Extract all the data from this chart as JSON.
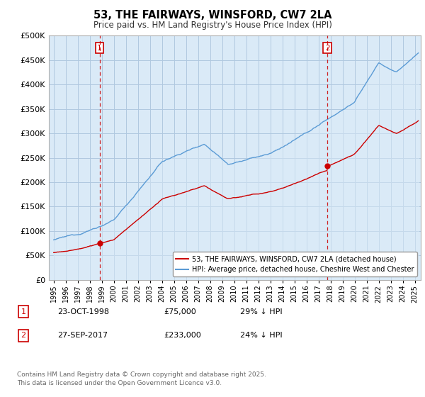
{
  "title": "53, THE FAIRWAYS, WINSFORD, CW7 2LA",
  "subtitle": "Price paid vs. HM Land Registry's House Price Index (HPI)",
  "ytick_values": [
    0,
    50000,
    100000,
    150000,
    200000,
    250000,
    300000,
    350000,
    400000,
    450000,
    500000
  ],
  "ylim": [
    0,
    500000
  ],
  "xlim_start": 1994.6,
  "xlim_end": 2025.5,
  "hpi_color": "#5b9bd5",
  "hpi_fill_color": "#daeaf7",
  "price_color": "#cc0000",
  "dashed_color": "#cc0000",
  "marker1_x": 1998.81,
  "marker1_y": 75000,
  "marker2_x": 2017.74,
  "marker2_y": 233000,
  "legend_property_label": "53, THE FAIRWAYS, WINSFORD, CW7 2LA (detached house)",
  "legend_hpi_label": "HPI: Average price, detached house, Cheshire West and Chester",
  "annotation1_num": "1",
  "annotation1_date": "23-OCT-1998",
  "annotation1_price": "£75,000",
  "annotation1_hpi": "29% ↓ HPI",
  "annotation2_num": "2",
  "annotation2_date": "27-SEP-2017",
  "annotation2_price": "£233,000",
  "annotation2_hpi": "24% ↓ HPI",
  "footnote": "Contains HM Land Registry data © Crown copyright and database right 2025.\nThis data is licensed under the Open Government Licence v3.0.",
  "background_color": "#ffffff",
  "plot_bg_color": "#daeaf7",
  "grid_color": "#b0c8e0"
}
